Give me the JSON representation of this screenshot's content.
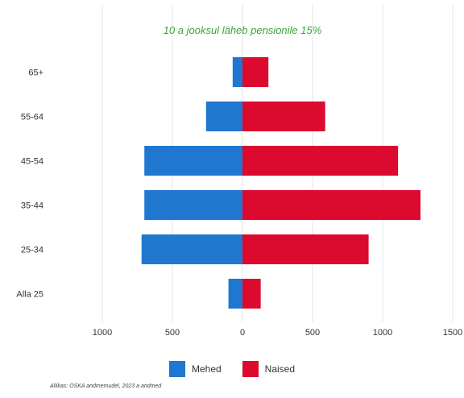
{
  "chart_data": {
    "type": "bar",
    "orientation": "horizontal-diverging",
    "title": "10 a jooksul läheb pensionile 15%",
    "title_color": "#3aa43a",
    "categories": [
      "Alla 25",
      "25-34",
      "35-44",
      "45-54",
      "55-64",
      "65+"
    ],
    "series": [
      {
        "name": "Mehed",
        "color": "#1f77d0",
        "values": [
          100,
          720,
          700,
          700,
          260,
          70
        ]
      },
      {
        "name": "Naised",
        "color": "#dc0a2e",
        "values": [
          130,
          900,
          1270,
          1110,
          590,
          185
        ]
      }
    ],
    "x_ticks": [
      {
        "value": -1000,
        "label": "1000"
      },
      {
        "value": -500,
        "label": "500"
      },
      {
        "value": 0,
        "label": "0"
      },
      {
        "value": 500,
        "label": "500"
      },
      {
        "value": 1000,
        "label": "1000"
      },
      {
        "value": 1500,
        "label": "1500"
      }
    ],
    "xlim": [
      -1000,
      1500
    ],
    "grid": "vertical",
    "legend_position": "bottom"
  },
  "source_text": "Allikas: OSKA andmemudel, 2023 a andmed"
}
